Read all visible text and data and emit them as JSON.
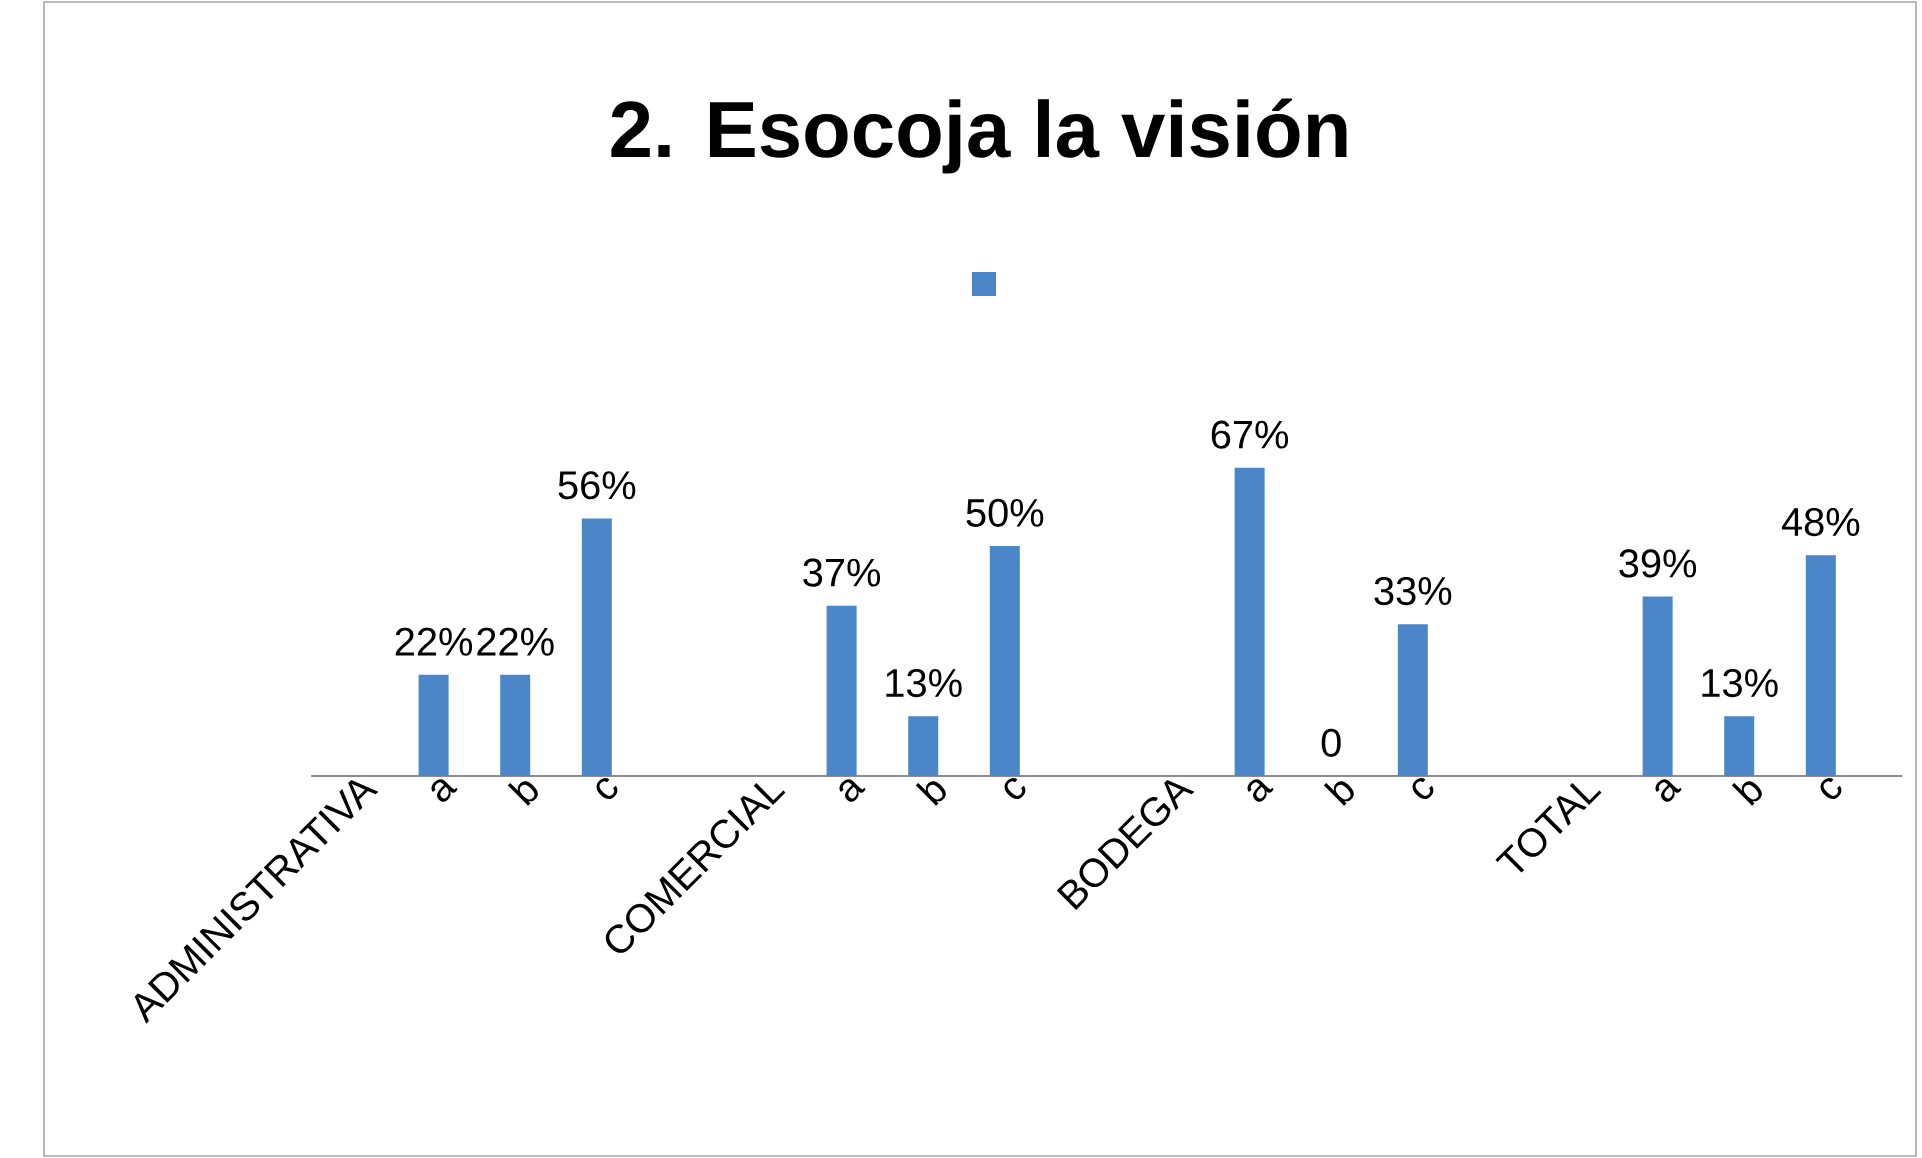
{
  "chart_data": {
    "type": "bar",
    "title": "2. Esocoja la visión",
    "categories": [
      "ADMINISTRATIVA",
      "a",
      "b",
      "c",
      null,
      "COMERCIAL",
      "a",
      "b",
      "c",
      null,
      "BODEGA",
      "a",
      "b",
      "c",
      null,
      "TOTAL",
      "a",
      "b",
      "c"
    ],
    "values": [
      null,
      22,
      22,
      56,
      null,
      null,
      37,
      13,
      50,
      null,
      null,
      67,
      0,
      33,
      null,
      null,
      39,
      13,
      48
    ],
    "value_labels": [
      null,
      "22%",
      "22%",
      "56%",
      null,
      null,
      "37%",
      "13%",
      "50%",
      null,
      null,
      "67%",
      "0",
      "33%",
      null,
      null,
      "39%",
      "13%",
      "48%"
    ],
    "color": "#4a86c8",
    "grid": false,
    "tick_labels": "x"
  }
}
